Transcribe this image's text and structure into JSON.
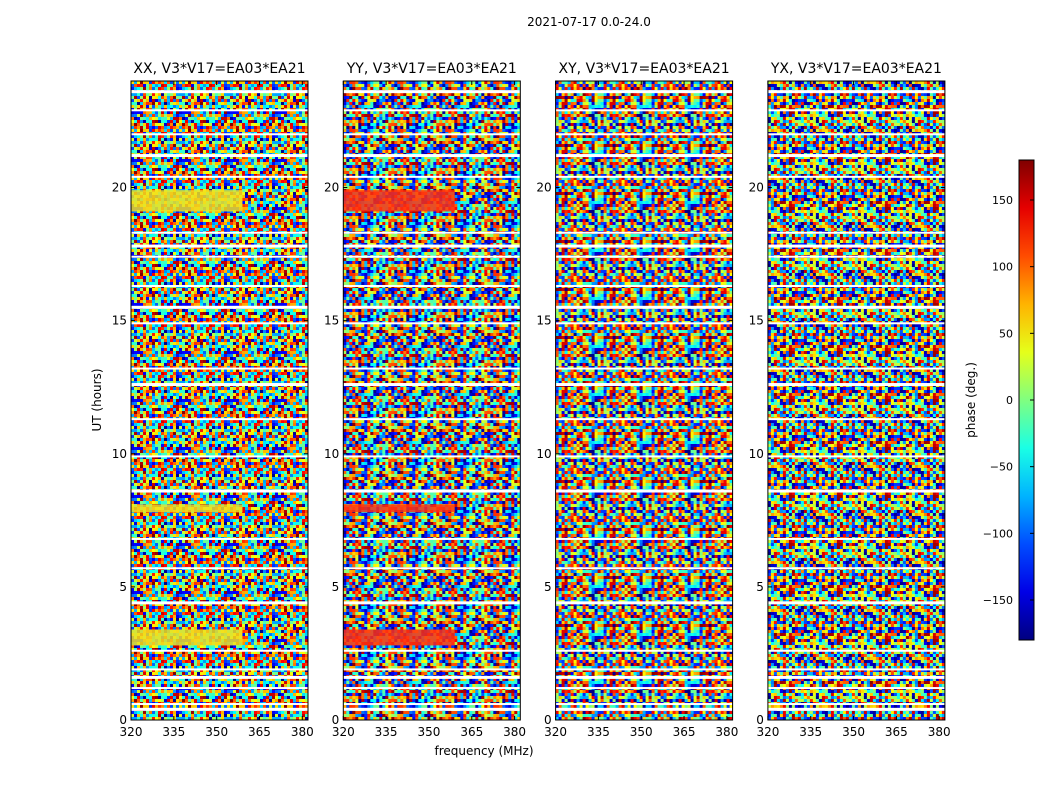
{
  "chart_data": {
    "type": "heatmap",
    "title": "2021-07-17 0.0-24.0",
    "xlabel": "frequency (MHz)",
    "ylabel": "UT (hours)",
    "xlim": [
      320,
      382
    ],
    "ylim": [
      0,
      24
    ],
    "x_ticks": [
      320,
      335,
      350,
      365,
      380
    ],
    "y_ticks": [
      0,
      5,
      10,
      15,
      20
    ],
    "panels": [
      {
        "title": "XX, V3*V17=EA03*EA21",
        "tint": "#f0e020"
      },
      {
        "title": "YY, V3*V17=EA03*EA21",
        "tint": "#ff3010"
      },
      {
        "title": "XY, V3*V17=EA03*EA21",
        "tint": ""
      },
      {
        "title": "YX, V3*V17=EA03*EA21",
        "tint": ""
      }
    ],
    "colorbar": {
      "label": "phase (deg.)",
      "range": [
        -180,
        180
      ],
      "ticks": [
        150,
        100,
        50,
        0,
        -50,
        -100,
        -150
      ]
    },
    "bright_bands_hours": [
      [
        2.8,
        3.4
      ],
      [
        7.8,
        8.1
      ],
      [
        19.1,
        19.9
      ]
    ],
    "gap_hours": [
      0.4,
      0.6,
      1.2,
      1.6,
      1.9,
      2.6,
      4.4,
      5.7,
      6.8,
      8.6,
      9.9,
      11.3,
      12.6,
      13.2,
      14.9,
      15.5,
      16.3,
      17.4,
      17.8,
      18.3,
      20.4,
      21.2,
      22.0,
      22.9,
      23.6
    ]
  }
}
